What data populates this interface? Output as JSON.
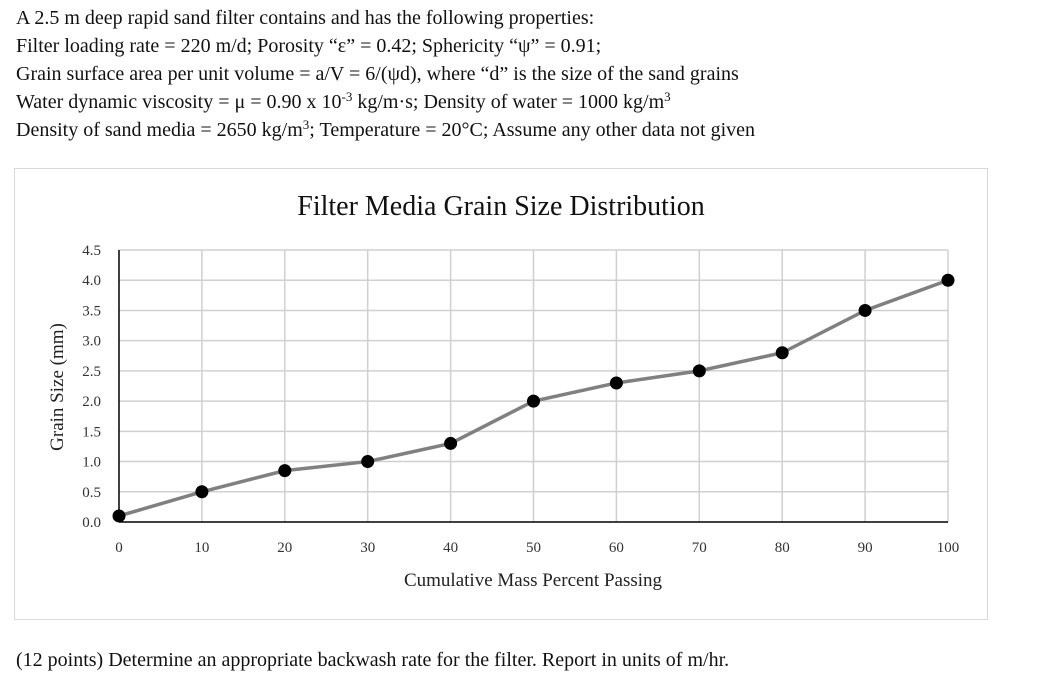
{
  "problem": {
    "lines": [
      {
        "text": "A 2.5 m deep rapid sand filter contains and has the following properties:"
      },
      {
        "text": "Filter loading rate = 220 m/d; Porosity “ε” = 0.42; Sphericity “ψ” = 0.91;"
      },
      {
        "text": "Grain surface area per unit volume = a/V = 6/(ψd), where “d” is the size of the sand grains"
      },
      {
        "pre": "Water dynamic viscosity = μ = 0.90 x 10",
        "sup1": "-3",
        "mid": " kg/m·s; Density of water = 1000 kg/m",
        "sup2": "3",
        "post": ""
      },
      {
        "pre": "Density of sand media = 2650 kg/m",
        "sup1": "3",
        "mid": "; Temperature = 20°C; Assume any other data not given",
        "sup2": "",
        "post": ""
      }
    ]
  },
  "chart_data": {
    "type": "line",
    "title": "Filter Media Grain Size Distribution",
    "xlabel": "Cumulative Mass Percent Passing",
    "ylabel": "Grain Size (mm)",
    "xlim": [
      0,
      100
    ],
    "ylim": [
      0,
      4.5
    ],
    "xticks": [
      "0",
      "10",
      "20",
      "30",
      "40",
      "50",
      "60",
      "70",
      "80",
      "90",
      "100"
    ],
    "yticks": [
      "0.0",
      "0.5",
      "1.0",
      "1.5",
      "2.0",
      "2.5",
      "3.0",
      "3.5",
      "4.0",
      "4.5"
    ],
    "grid": true,
    "legend": "none",
    "series": [
      {
        "x": [
          0,
          10,
          20,
          30,
          40,
          50,
          60,
          70,
          80,
          90,
          100
        ],
        "y": [
          0.1,
          0.5,
          0.85,
          1.0,
          1.3,
          2.0,
          2.3,
          2.5,
          2.8,
          3.5,
          4.0
        ]
      }
    ],
    "colors": {
      "line": "#808080",
      "marker": "#000000",
      "grid": "#d0d0d0",
      "axis": "#000000"
    }
  },
  "question": {
    "text": "(12 points) Determine an appropriate backwash rate for the filter. Report in units of m/hr."
  }
}
